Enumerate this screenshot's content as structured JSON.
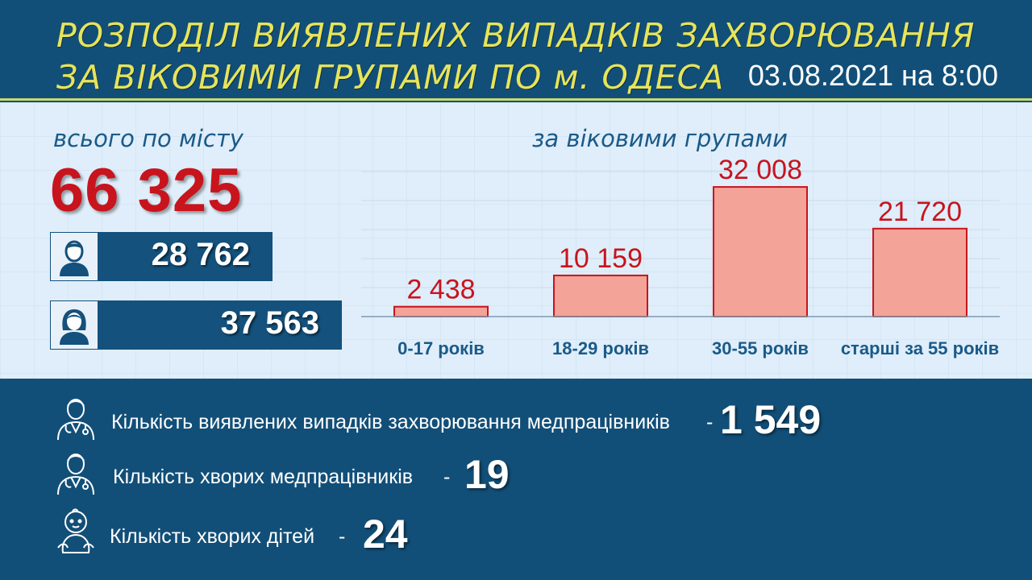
{
  "header": {
    "title_line1": "РОЗПОДІЛ ВИЯВЛЕНИХ ВИПАДКІВ ЗАХВОРЮВАННЯ",
    "title_line2": "ЗА ВІКОВИМИ ГРУПАМИ ПО м. ОДЕСА",
    "date": "03.08.2021 на 8:00"
  },
  "colors": {
    "accent": "#e7e45a",
    "bar_fill": "#f3a397",
    "bar_stroke": "#c8141d",
    "value_red": "#c8141d",
    "navy": "#124f78"
  },
  "totals": {
    "label": "всього по місту",
    "value": "66 325",
    "male": {
      "icon": "male-person-icon",
      "value": "28 762"
    },
    "female": {
      "icon": "female-person-icon",
      "value": "37 563"
    }
  },
  "chart_data": {
    "type": "bar",
    "title": "за віковими групами",
    "categories": [
      "0-17 років",
      "18-29 років",
      "30-55 років",
      "старші за 55 років"
    ],
    "values": [
      2438,
      10159,
      32008,
      21720
    ],
    "value_labels": [
      "2 438",
      "10 159",
      "32 008",
      "21 720"
    ],
    "ylim": [
      0,
      36000
    ],
    "grid": true
  },
  "stats": [
    {
      "icon": "doctor-icon",
      "label": "Кількість виявлених випадків захворювання медпрацівників",
      "dash": "-",
      "value": "1 549"
    },
    {
      "icon": "doctor-icon",
      "label": "Кількість хворих медпрацівників",
      "dash": "-",
      "value": "19"
    },
    {
      "icon": "baby-icon",
      "label": "Кількість хворих дітей",
      "dash": "-",
      "value": "24"
    }
  ]
}
